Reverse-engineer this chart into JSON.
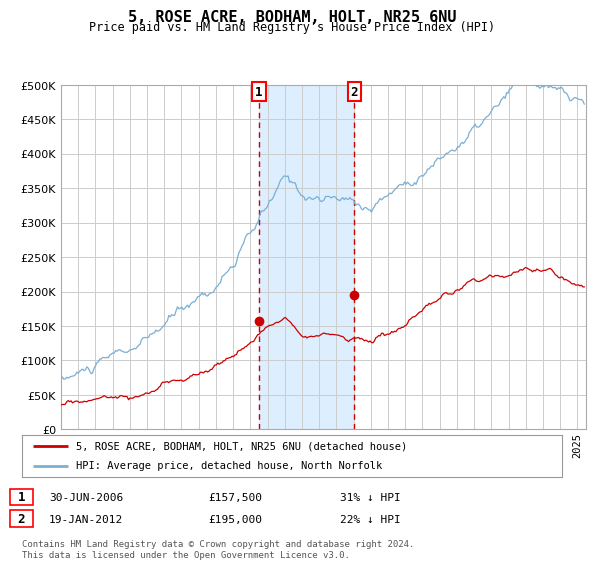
{
  "title": "5, ROSE ACRE, BODHAM, HOLT, NR25 6NU",
  "subtitle": "Price paid vs. HM Land Registry's House Price Index (HPI)",
  "ytick_values": [
    0,
    50000,
    100000,
    150000,
    200000,
    250000,
    300000,
    350000,
    400000,
    450000,
    500000
  ],
  "xlim_start": 1995.0,
  "xlim_end": 2025.5,
  "ylim_min": 0,
  "ylim_max": 500000,
  "hpi_color": "#7bafd4",
  "price_color": "#cc0000",
  "purchase1_date": 2006.49,
  "purchase1_price": 157500,
  "purchase2_date": 2012.05,
  "purchase2_price": 195000,
  "legend_label1": "5, ROSE ACRE, BODHAM, HOLT, NR25 6NU (detached house)",
  "legend_label2": "HPI: Average price, detached house, North Norfolk",
  "annotation1_date": "30-JUN-2006",
  "annotation1_price": "£157,500",
  "annotation1_pct": "31% ↓ HPI",
  "annotation2_date": "19-JAN-2012",
  "annotation2_price": "£195,000",
  "annotation2_pct": "22% ↓ HPI",
  "footer": "Contains HM Land Registry data © Crown copyright and database right 2024.\nThis data is licensed under the Open Government Licence v3.0.",
  "background_color": "#ffffff",
  "grid_color": "#cccccc",
  "shade_color": "#ddeeff"
}
